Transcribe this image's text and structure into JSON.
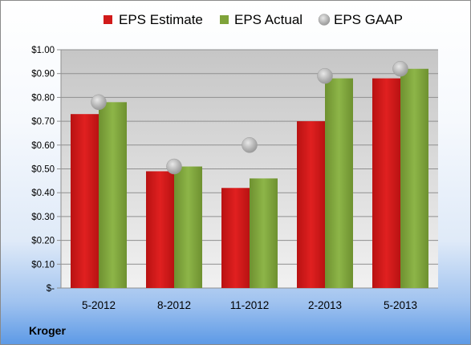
{
  "chart_data": {
    "type": "bar",
    "categories": [
      "5-2012",
      "8-2012",
      "11-2012",
      "2-2013",
      "5-2013"
    ],
    "series": [
      {
        "name": "EPS Estimate",
        "kind": "bar",
        "color": "#d11a1a",
        "values": [
          0.73,
          0.49,
          0.42,
          0.7,
          0.88
        ]
      },
      {
        "name": "EPS Actual",
        "kind": "bar",
        "color": "#7fa33a",
        "values": [
          0.78,
          0.51,
          0.46,
          0.88,
          0.92
        ]
      },
      {
        "name": "EPS GAAP",
        "kind": "marker",
        "color": "#b5b5b5",
        "values": [
          0.78,
          0.51,
          0.6,
          0.89,
          0.92
        ]
      }
    ],
    "ylim": [
      0,
      1.0
    ],
    "yticks": [
      0,
      0.1,
      0.2,
      0.3,
      0.4,
      0.5,
      0.6,
      0.7,
      0.8,
      0.9,
      1.0
    ],
    "ytick_labels": [
      "$-",
      "$0.10",
      "$0.20",
      "$0.30",
      "$0.40",
      "$0.50",
      "$0.60",
      "$0.70",
      "$0.80",
      "$0.90",
      "$1.00"
    ],
    "grid": true,
    "legend_position": "top",
    "source_label": "Kroger"
  }
}
